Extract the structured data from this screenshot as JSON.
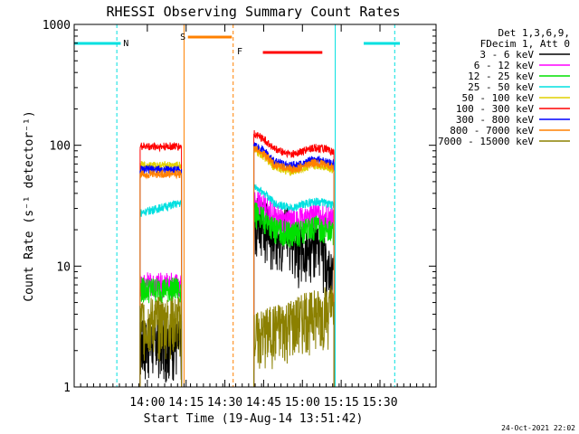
{
  "chart_data": {
    "type": "line",
    "title": "RHESSI Observing Summary Count Rates",
    "xlabel": "Start Time (19-Aug-14 13:51:42)",
    "ylabel": "Count Rate (s⁻¹ detector⁻¹)",
    "x_range_minutes": [
      -20,
      120
    ],
    "x_ticks": [
      {
        "min": 8.3,
        "label": "14:00"
      },
      {
        "min": 23.3,
        "label": "14:15"
      },
      {
        "min": 38.3,
        "label": "14:30"
      },
      {
        "min": 53.3,
        "label": "14:45"
      },
      {
        "min": 68.3,
        "label": "15:00"
      },
      {
        "min": 83.3,
        "label": "15:15"
      },
      {
        "min": 98.3,
        "label": "15:30"
      }
    ],
    "y_scale": "log",
    "ylim": [
      1,
      1000
    ],
    "y_ticks": [
      {
        "value": 1,
        "label": "1"
      },
      {
        "value": 10,
        "label": "10"
      },
      {
        "value": 100,
        "label": "100"
      },
      {
        "value": 1000,
        "label": "1000"
      }
    ],
    "legend_header": [
      "Det 1,3,6,9,",
      "FDecim 1, Att 0"
    ],
    "series": [
      {
        "name": "3 - 6 keV",
        "color": "#000000"
      },
      {
        "name": "6 - 12 keV",
        "color": "#ff00ff"
      },
      {
        "name": "12 - 25 keV",
        "color": "#00e000"
      },
      {
        "name": "25 - 50 keV",
        "color": "#00e0e0"
      },
      {
        "name": "50 - 100 keV",
        "color": "#e0d000"
      },
      {
        "name": "100 - 300 keV",
        "color": "#ff0000"
      },
      {
        "name": "300 - 800 keV",
        "color": "#0000ff"
      },
      {
        "name": "800 - 7000 keV",
        "color": "#ff8000"
      },
      {
        "name": "7000 - 15000 keV",
        "color": "#8b8000"
      }
    ],
    "segments": [
      {
        "start": 5.5,
        "end": 21.5,
        "levels": [
          2.4,
          7.2,
          6.5,
          29,
          68,
          98,
          63,
          58,
          3.6
        ]
      },
      {
        "start": 49.5,
        "end": 80.5,
        "levels": [
          12,
          28,
          22,
          36,
          72,
          100,
          80,
          75,
          3.8
        ]
      }
    ],
    "annotations": [
      {
        "label": "N",
        "color": "#00e0e0"
      },
      {
        "label": "S",
        "color": "#ff8000"
      },
      {
        "label": "F",
        "color": "#ff0000"
      }
    ],
    "footer_date": "24-Oct-2021 22:02"
  }
}
